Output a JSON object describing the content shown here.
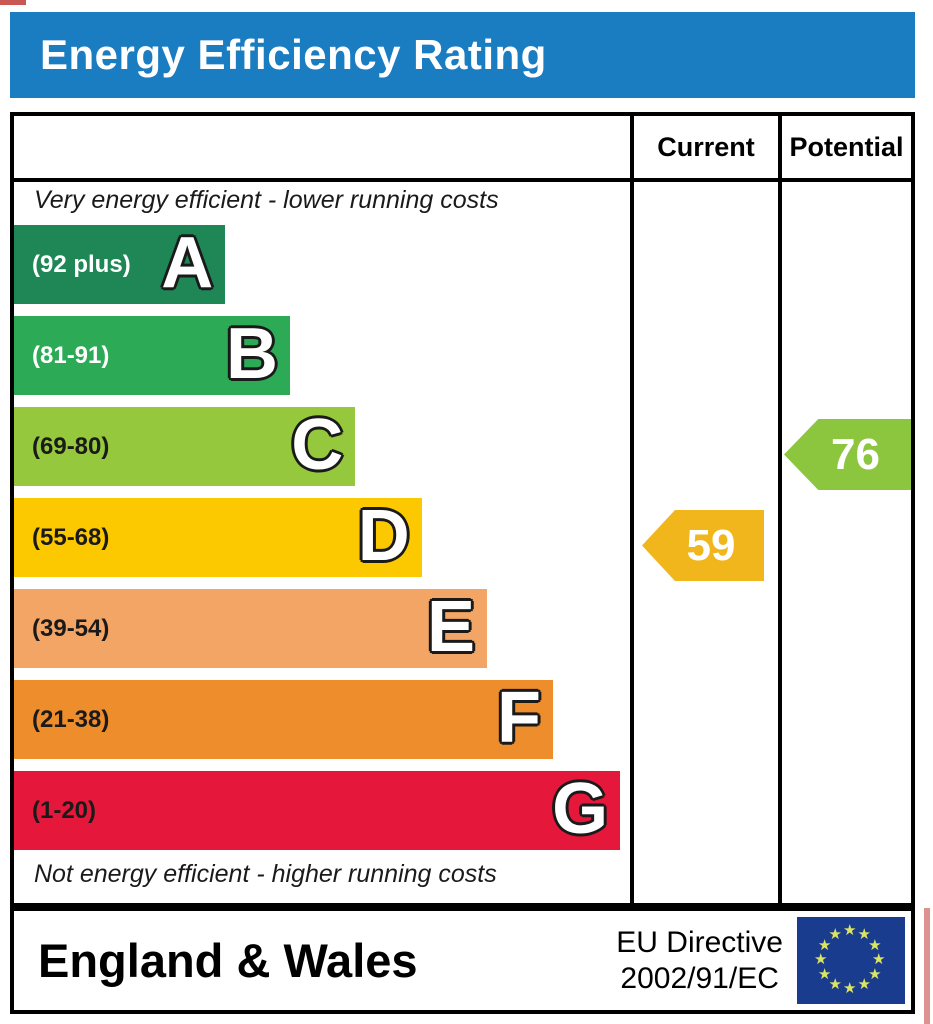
{
  "header": {
    "title": "Energy Efficiency Rating",
    "background": "#1a7cc1",
    "text_color": "#ffffff"
  },
  "columns": [
    "Current",
    "Potential"
  ],
  "chart_data": {
    "type": "bar",
    "title": "Energy Efficiency Rating",
    "top_annotation": "Very energy efficient - lower running costs",
    "bottom_annotation": "Not energy efficient - higher running costs",
    "bands": [
      {
        "letter": "A",
        "range_label": "(92 plus)",
        "min": 92,
        "max": 100,
        "color": "#1e8755",
        "label_color": "#ffffff",
        "width_pct": 34.3
      },
      {
        "letter": "B",
        "range_label": "(81-91)",
        "min": 81,
        "max": 91,
        "color": "#2caa55",
        "label_color": "#ffffff",
        "width_pct": 44.8
      },
      {
        "letter": "C",
        "range_label": "(69-80)",
        "min": 69,
        "max": 80,
        "color": "#95c83c",
        "label_color": "#1a1a1a",
        "width_pct": 55.4
      },
      {
        "letter": "D",
        "range_label": "(55-68)",
        "min": 55,
        "max": 68,
        "color": "#fcc900",
        "label_color": "#1a1a1a",
        "width_pct": 66.2
      },
      {
        "letter": "E",
        "range_label": "(39-54)",
        "min": 39,
        "max": 54,
        "color": "#f2a564",
        "label_color": "#1a1a1a",
        "width_pct": 76.8
      },
      {
        "letter": "F",
        "range_label": "(21-38)",
        "min": 21,
        "max": 38,
        "color": "#ee8d2b",
        "label_color": "#1a1a1a",
        "width_pct": 87.5
      },
      {
        "letter": "G",
        "range_label": "(1-20)",
        "min": 1,
        "max": 20,
        "color": "#e5173a",
        "label_color": "#1a1a1a",
        "width_pct": 98.4
      }
    ],
    "current": {
      "label": "Current",
      "value": 59,
      "band": "D",
      "color": "#f1b61c"
    },
    "potential": {
      "label": "Potential",
      "value": 76,
      "band": "C",
      "color": "#8cc63f"
    }
  },
  "footer": {
    "region": "England & Wales",
    "directive_line1": "EU Directive",
    "directive_line2": "2002/91/EC",
    "eu_flag": {
      "background": "#1a3c8e",
      "star_color": "#dce463",
      "star_count": 12,
      "star_glyph": "★"
    }
  }
}
